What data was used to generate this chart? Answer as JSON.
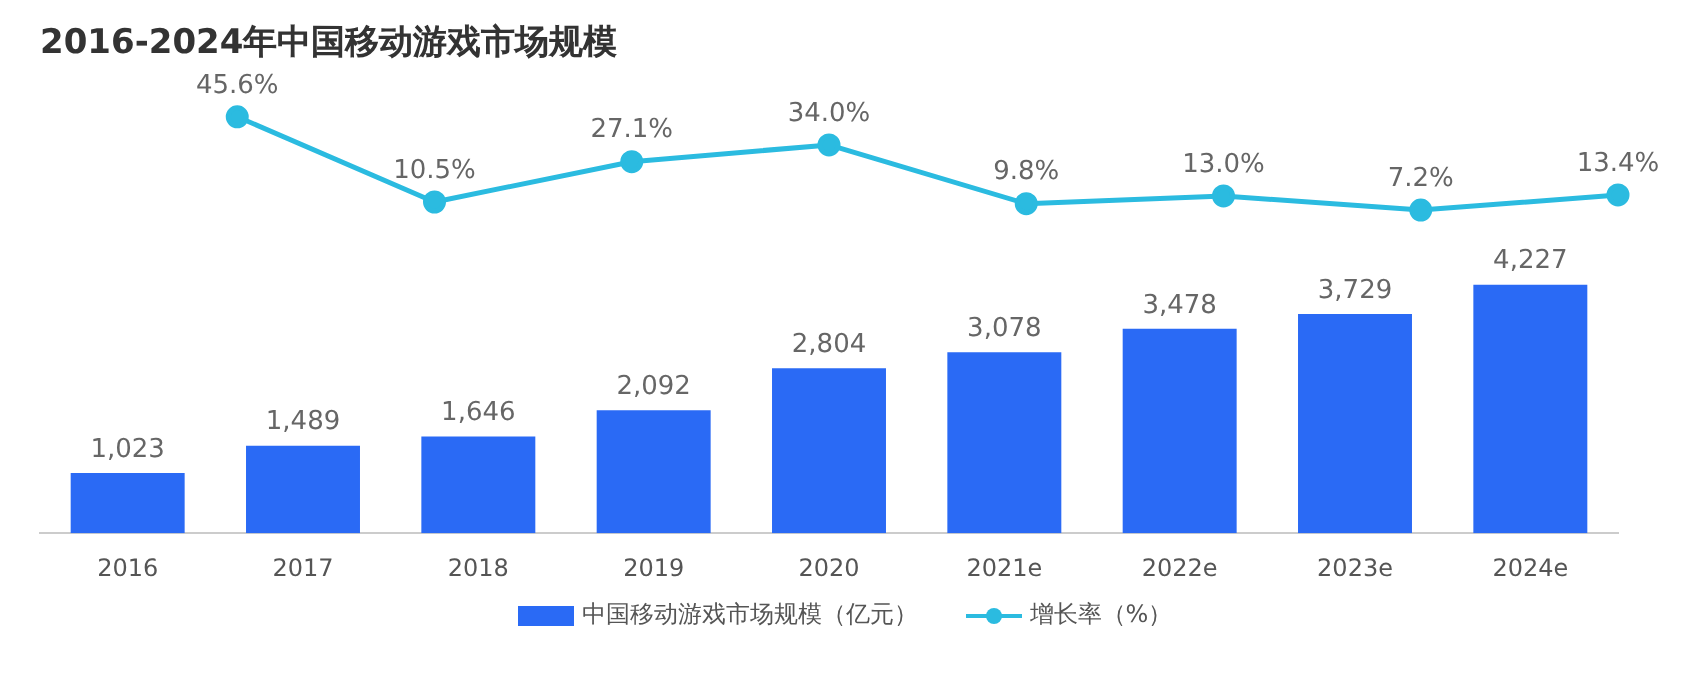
{
  "chart_data": [
    {
      "type": "line",
      "title": "2016-2024年中国移动游戏市场规模",
      "categories": [
        null,
        null,
        null,
        null,
        null,
        null,
        null,
        null,
        null
      ],
      "series": [
        {
          "name": "增长率（%）",
          "color": "#2bbbe0",
          "values": [
            null,
            45.6,
            10.5,
            27.1,
            34.0,
            9.8,
            13.0,
            7.2,
            13.4
          ],
          "value_labels": [
            null,
            "45.6%",
            "10.5%",
            "27.1%",
            "34.0%",
            "9.8%",
            "13.0%",
            "7.2%",
            "13.4%"
          ]
        }
      ],
      "legend": "bottom",
      "marker": "circle",
      "grid": false,
      "tick_labels": false
    },
    {
      "type": "bar",
      "categories": [
        "2016",
        "2017",
        "2018",
        "2019",
        "2020",
        "2021e",
        "2022e",
        "2023e",
        "2024e"
      ],
      "series": [
        {
          "name": "中国移动游戏市场规模（亿元）",
          "color": "#2a6af5",
          "values": [
            1023,
            1489,
            1646,
            2092,
            2804,
            3078,
            3478,
            3729,
            4227
          ],
          "value_labels": [
            "1,023",
            "1,489",
            "1,646",
            "2,092",
            "2,804",
            "3,078",
            "3,478",
            "3,729",
            "4,227"
          ]
        }
      ],
      "legend": "bottom",
      "grid": false,
      "tick_labels": "x"
    }
  ]
}
